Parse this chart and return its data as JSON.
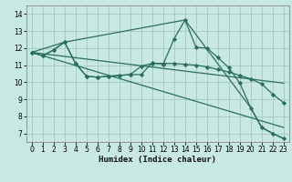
{
  "xlabel": "Humidex (Indice chaleur)",
  "bg_color": "#c8e8e4",
  "grid_color": "#a8ccc8",
  "line_color": "#2a6e60",
  "xlim": [
    -0.5,
    23.5
  ],
  "ylim": [
    6.5,
    14.5
  ],
  "yticks": [
    7,
    8,
    9,
    10,
    11,
    12,
    13,
    14
  ],
  "xticks": [
    0,
    1,
    2,
    3,
    4,
    5,
    6,
    7,
    8,
    9,
    10,
    11,
    12,
    13,
    14,
    15,
    16,
    17,
    18,
    19,
    20,
    21,
    22,
    23
  ],
  "line1_x": [
    0,
    1,
    2,
    3,
    4,
    5,
    6,
    7,
    8,
    9,
    10,
    11,
    12,
    13,
    14,
    15,
    16,
    17,
    18,
    19,
    20,
    21,
    22,
    23
  ],
  "line1_y": [
    11.75,
    11.55,
    11.9,
    12.35,
    11.1,
    10.35,
    10.3,
    10.35,
    10.4,
    10.45,
    10.45,
    11.15,
    11.05,
    12.55,
    13.65,
    12.05,
    12.0,
    11.45,
    10.85,
    9.95,
    8.5,
    7.35,
    7.0,
    6.7
  ],
  "line2_x": [
    0,
    1,
    2,
    3,
    4,
    5,
    6,
    7,
    8,
    9,
    10,
    11,
    12,
    13,
    14,
    15,
    16,
    17,
    18,
    19,
    20,
    21,
    22,
    23
  ],
  "line2_y": [
    11.75,
    11.55,
    11.9,
    12.35,
    11.1,
    10.35,
    10.3,
    10.35,
    10.4,
    10.45,
    10.95,
    11.1,
    11.1,
    11.1,
    11.05,
    11.0,
    10.9,
    10.75,
    10.6,
    10.4,
    10.2,
    9.9,
    9.3,
    8.8
  ],
  "line3_x": [
    0,
    23
  ],
  "line3_y": [
    11.75,
    9.95
  ],
  "line4_x": [
    0,
    3,
    14,
    20,
    21,
    22,
    23
  ],
  "line4_y": [
    11.75,
    12.35,
    13.65,
    8.5,
    7.35,
    7.0,
    6.7
  ],
  "line5_x": [
    0,
    23
  ],
  "line5_y": [
    11.75,
    7.35
  ]
}
